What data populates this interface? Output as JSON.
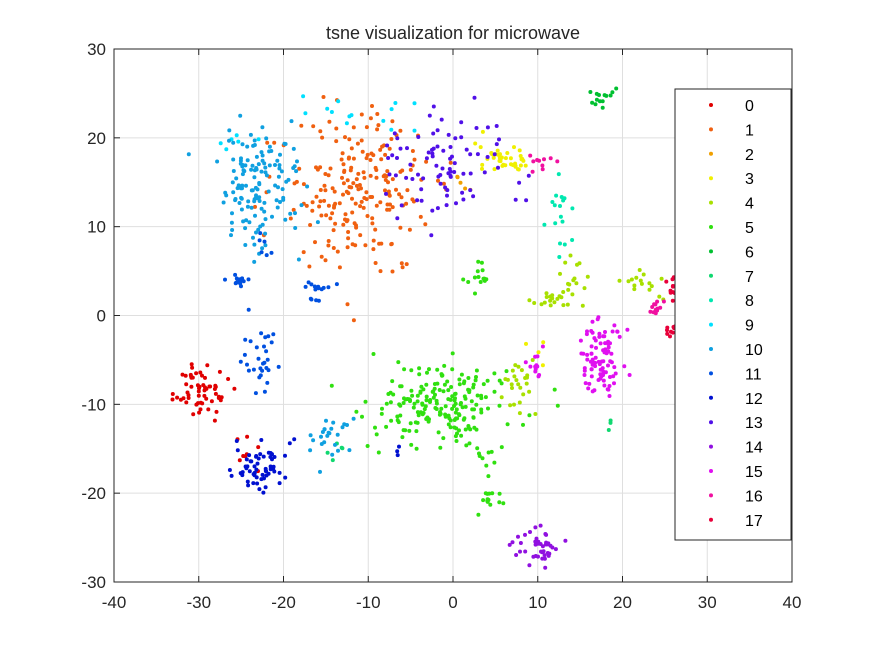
{
  "chart_data": {
    "type": "scatter",
    "title": "tsne visualization for microwave",
    "xlabel": "",
    "ylabel": "",
    "xlim": [
      -40,
      40
    ],
    "ylim": [
      -30,
      30
    ],
    "xticks": [
      "-40",
      "-30",
      "-20",
      "-10",
      "0",
      "10",
      "20",
      "30",
      "40"
    ],
    "yticks": [
      "-30",
      "-20",
      "-10",
      "0",
      "10",
      "20",
      "30"
    ],
    "grid": true,
    "legend_position": "right",
    "series": [
      {
        "name": "0",
        "color": "#e00000",
        "clusters": [
          {
            "cx": -29.5,
            "cy": -8.5,
            "sx": 1.6,
            "sy": 1.6,
            "n": 60
          },
          {
            "cx": -24.5,
            "cy": -15.5,
            "sx": 1.0,
            "sy": 0.8,
            "n": 8
          }
        ]
      },
      {
        "name": "1",
        "color": "#f06010",
        "clusters": [
          {
            "cx": -11,
            "cy": 14,
            "sx": 4.5,
            "sy": 4.5,
            "n": 210
          }
        ]
      },
      {
        "name": "2",
        "color": "#f0a000",
        "clusters": [
          {
            "cx": 1.5,
            "cy": 14.5,
            "sx": 0.6,
            "sy": 0.6,
            "n": 5
          }
        ]
      },
      {
        "name": "3",
        "color": "#f0f000",
        "clusters": [
          {
            "cx": 6,
            "cy": 17.5,
            "sx": 1.6,
            "sy": 0.9,
            "n": 40
          },
          {
            "cx": 10,
            "cy": -4.5,
            "sx": 0.6,
            "sy": 0.6,
            "n": 4
          }
        ]
      },
      {
        "name": "4",
        "color": "#a8e000",
        "clusters": [
          {
            "cx": 14,
            "cy": 4.5,
            "sx": 0.8,
            "sy": 2.0,
            "n": 18
          },
          {
            "cx": 11,
            "cy": 1.8,
            "sx": 1.2,
            "sy": 0.5,
            "n": 15
          },
          {
            "cx": 22,
            "cy": 3.5,
            "sx": 1.4,
            "sy": 1.2,
            "n": 16
          },
          {
            "cx": 7,
            "cy": -8,
            "sx": 1.6,
            "sy": 1.5,
            "n": 25
          }
        ]
      },
      {
        "name": "5",
        "color": "#30e010",
        "clusters": [
          {
            "cx": -1,
            "cy": -10,
            "sx": 4.0,
            "sy": 2.3,
            "n": 200
          },
          {
            "cx": 3,
            "cy": 4,
            "sx": 0.7,
            "sy": 1.0,
            "n": 14
          },
          {
            "cx": 4.5,
            "cy": -21,
            "sx": 0.8,
            "sy": 0.6,
            "n": 14
          },
          {
            "cx": 4,
            "cy": -16,
            "sx": 0.6,
            "sy": 1.5,
            "n": 8
          }
        ]
      },
      {
        "name": "6",
        "color": "#00c030",
        "clusters": [
          {
            "cx": 17.5,
            "cy": 25,
            "sx": 0.8,
            "sy": 0.6,
            "n": 14
          }
        ]
      },
      {
        "name": "7",
        "color": "#10d870",
        "clusters": [
          {
            "cx": -14,
            "cy": -15,
            "sx": 0.6,
            "sy": 0.6,
            "n": 5
          },
          {
            "cx": 18.5,
            "cy": -12,
            "sx": 0.3,
            "sy": 0.4,
            "n": 3
          }
        ]
      },
      {
        "name": "8",
        "color": "#00e8b0",
        "clusters": [
          {
            "cx": 12.5,
            "cy": 11.5,
            "sx": 0.8,
            "sy": 2.3,
            "n": 18
          }
        ]
      },
      {
        "name": "9",
        "color": "#00e0ff",
        "clusters": [
          {
            "cx": -12,
            "cy": 23,
            "sx": 4.0,
            "sy": 0.9,
            "n": 14
          },
          {
            "cx": -26,
            "cy": 19.5,
            "sx": 0.9,
            "sy": 0.6,
            "n": 6
          }
        ]
      },
      {
        "name": "10",
        "color": "#10a0e0",
        "clusters": [
          {
            "cx": -23,
            "cy": 14,
            "sx": 2.6,
            "sy": 3.5,
            "n": 140
          },
          {
            "cx": -15,
            "cy": -14,
            "sx": 1.3,
            "sy": 1.2,
            "n": 25
          }
        ]
      },
      {
        "name": "11",
        "color": "#0050e0",
        "clusters": [
          {
            "cx": -25.5,
            "cy": 4,
            "sx": 0.8,
            "sy": 0.4,
            "n": 14
          },
          {
            "cx": -16,
            "cy": 3,
            "sx": 1.0,
            "sy": 0.6,
            "n": 16
          },
          {
            "cx": -22.5,
            "cy": -5,
            "sx": 1.2,
            "sy": 1.8,
            "n": 30
          },
          {
            "cx": -22,
            "cy": 8,
            "sx": 0.8,
            "sy": 1.0,
            "n": 6
          }
        ]
      },
      {
        "name": "12",
        "color": "#0010d0",
        "clusters": [
          {
            "cx": -23,
            "cy": -17,
            "sx": 1.7,
            "sy": 1.5,
            "n": 60
          },
          {
            "cx": -6,
            "cy": -15.3,
            "sx": 0.4,
            "sy": 0.3,
            "n": 3
          }
        ]
      },
      {
        "name": "13",
        "color": "#5010e8",
        "clusters": [
          {
            "cx": -1,
            "cy": 17,
            "sx": 3.5,
            "sy": 3.0,
            "n": 85
          }
        ]
      },
      {
        "name": "14",
        "color": "#9010e0",
        "clusters": [
          {
            "cx": 10,
            "cy": -26,
            "sx": 1.3,
            "sy": 0.9,
            "n": 42
          }
        ]
      },
      {
        "name": "15",
        "color": "#e010f0",
        "clusters": [
          {
            "cx": 17.5,
            "cy": -4.5,
            "sx": 1.3,
            "sy": 2.4,
            "n": 90
          },
          {
            "cx": 9.5,
            "cy": -5.5,
            "sx": 0.8,
            "sy": 0.8,
            "n": 12
          }
        ]
      },
      {
        "name": "16",
        "color": "#f010a0",
        "clusters": [
          {
            "cx": 10.5,
            "cy": 17,
            "sx": 1.2,
            "sy": 0.6,
            "n": 10
          },
          {
            "cx": 24,
            "cy": 0.8,
            "sx": 0.8,
            "sy": 0.6,
            "n": 12
          }
        ]
      },
      {
        "name": "17",
        "color": "#e8003a",
        "clusters": [
          {
            "cx": 26,
            "cy": 3.5,
            "sx": 0.6,
            "sy": 1.2,
            "n": 18
          },
          {
            "cx": 26,
            "cy": -1.5,
            "sx": 0.5,
            "sy": 0.5,
            "n": 10
          }
        ]
      }
    ]
  }
}
